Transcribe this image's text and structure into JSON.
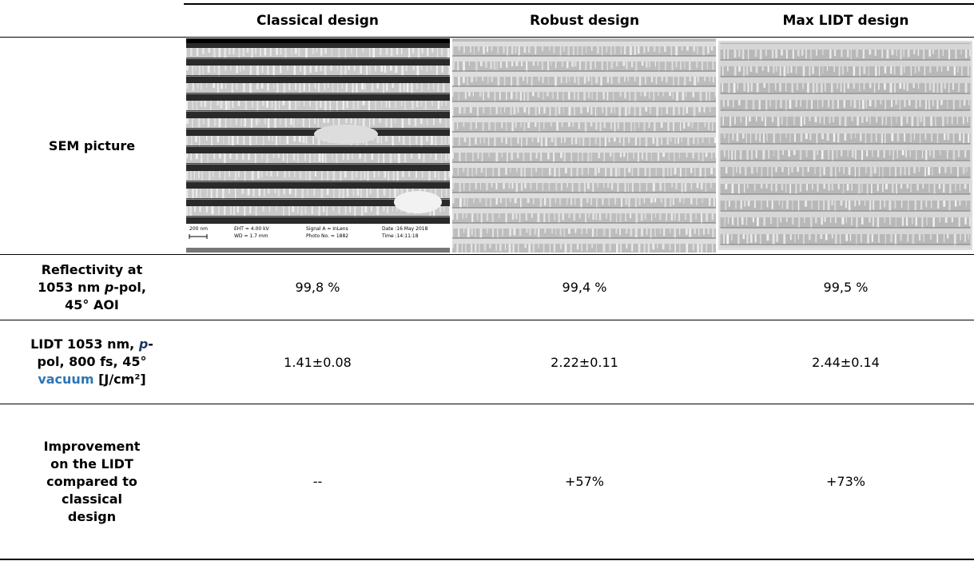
{
  "table": {
    "header": [
      "Classical design",
      "Robust design",
      "Max LIDT design"
    ],
    "rows": [
      {
        "label": [
          "SEM picture"
        ]
      },
      {
        "label": [
          "Reflectivity at 1053 nm ",
          "p",
          "-pol, 45° AOI"
        ],
        "cells": [
          "99,8 %",
          "99,4 %",
          "99,5 %"
        ]
      },
      {
        "label": [
          "LIDT 1053 nm, ",
          "p",
          "-pol, 800 fs, 45° ",
          "vacuum",
          " [J/cm²]"
        ],
        "cells": [
          "1.41±0.08",
          "2.22±0.11",
          "2.44±0.14"
        ]
      },
      {
        "label": [
          "Improvement on the LIDT compared to classical design"
        ],
        "cells": [
          "--",
          "+57%",
          "+73%"
        ]
      }
    ]
  },
  "sem_info": {
    "scale": "200 nm",
    "eht": "EHT = 4.00 kV",
    "wd": "WD = 1.7 mm",
    "signal": "Signal A = InLens",
    "photo": "Photo No. = 1882",
    "date": "Date :16 May 2018",
    "time": "Time :14:11:18"
  }
}
